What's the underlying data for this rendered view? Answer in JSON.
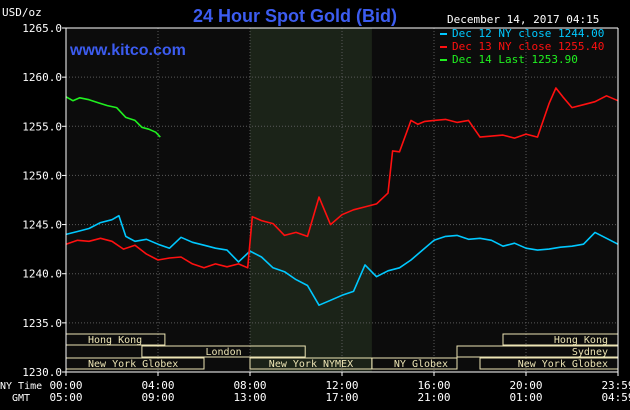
{
  "header": {
    "unit": "USD/oz",
    "title": "24 Hour Spot Gold (Bid)",
    "timestamp": "December 14, 2017 04:15",
    "website": "www.kitco.com"
  },
  "colors": {
    "background": "#000000",
    "plot_night": "#0c0c0c",
    "plot_nymex": "#1b2318",
    "grid": "#5a5a5a",
    "title": "#3c5cf0",
    "dec12": "#00c8ff",
    "dec13": "#ff1010",
    "dec14": "#20f020",
    "session_box": "#ece4b4",
    "text": "#ffffff"
  },
  "chart_data": {
    "type": "line",
    "title": "24 Hour Spot Gold (Bid)",
    "ylabel": "USD/oz",
    "ylim": [
      1230,
      1265
    ],
    "y_ticks": [
      1230,
      1235,
      1240,
      1245,
      1250,
      1255,
      1260,
      1265
    ],
    "y_tick_labels": [
      "1230.0",
      "1235.0",
      "1240.0",
      "1245.0",
      "1250.0",
      "1255.0",
      "1260.0",
      "1265.0"
    ],
    "xlim": [
      0,
      24
    ],
    "x_ticks": [
      0,
      4,
      8,
      12,
      16,
      20,
      24
    ],
    "x_tick_labels_ny": [
      "00:00",
      "04:00",
      "08:00",
      "12:00",
      "16:00",
      "20:00",
      "23:59"
    ],
    "x_tick_labels_gmt": [
      "05:00",
      "09:00",
      "13:00",
      "17:00",
      "21:00",
      "01:00",
      "04:59"
    ],
    "x_axis_label_ny": "NY Time",
    "x_axis_label_gmt": "GMT",
    "nymex_shade": [
      8,
      13.3
    ],
    "legend": [
      {
        "label": "Dec 12 NY close 1244.00",
        "color": "#00c8ff"
      },
      {
        "label": "Dec 13 NY close 1255.40",
        "color": "#ff1010"
      },
      {
        "label": "Dec 14 Last 1253.90",
        "color": "#20f020"
      }
    ],
    "series": [
      {
        "color": "#00c8ff",
        "x": [
          0,
          0.5,
          1,
          1.5,
          2,
          2.3,
          2.6,
          3,
          3.5,
          4,
          4.5,
          5,
          5.5,
          6,
          6.5,
          7,
          7.5,
          8,
          8.5,
          9,
          9.5,
          10,
          10.5,
          11,
          11.5,
          12,
          12.5,
          13,
          13.5,
          14,
          14.5,
          15,
          15.5,
          16,
          16.5,
          17,
          17.5,
          18,
          18.5,
          19,
          19.5,
          20,
          20.5,
          21,
          21.5,
          22,
          22.5,
          23,
          23.5,
          24
        ],
        "y": [
          1244.0,
          1244.3,
          1244.6,
          1245.2,
          1245.5,
          1245.9,
          1243.8,
          1243.3,
          1243.5,
          1243.0,
          1242.6,
          1243.7,
          1243.2,
          1242.9,
          1242.6,
          1242.4,
          1241.2,
          1242.3,
          1241.7,
          1240.6,
          1240.2,
          1239.4,
          1238.8,
          1236.8,
          1237.3,
          1237.8,
          1238.2,
          1240.9,
          1239.7,
          1240.3,
          1240.6,
          1241.4,
          1242.4,
          1243.4,
          1243.8,
          1243.9,
          1243.5,
          1243.6,
          1243.4,
          1242.8,
          1243.1,
          1242.6,
          1242.4,
          1242.5,
          1242.7,
          1242.8,
          1243.0,
          1244.2,
          1243.6,
          1243.0
        ]
      },
      {
        "color": "#ff1010",
        "x": [
          0,
          0.5,
          1,
          1.5,
          2,
          2.5,
          3,
          3.5,
          4,
          4.5,
          5,
          5.5,
          6,
          6.5,
          7,
          7.5,
          7.9,
          8.1,
          8.5,
          9,
          9.5,
          10,
          10.5,
          11,
          11.5,
          12,
          12.5,
          13,
          13.5,
          14,
          14.2,
          14.5,
          15,
          15.3,
          15.6,
          16,
          16.5,
          17,
          17.5,
          18,
          18.5,
          19,
          19.5,
          20,
          20.5,
          21,
          21.3,
          21.6,
          22,
          22.5,
          23,
          23.5,
          24
        ],
        "y": [
          1243.0,
          1243.4,
          1243.3,
          1243.6,
          1243.3,
          1242.5,
          1242.9,
          1242.0,
          1241.4,
          1241.6,
          1241.7,
          1241.0,
          1240.6,
          1241.0,
          1240.7,
          1241.0,
          1240.6,
          1245.8,
          1245.4,
          1245.1,
          1243.9,
          1244.2,
          1243.8,
          1247.8,
          1245.0,
          1246.0,
          1246.5,
          1246.8,
          1247.1,
          1248.2,
          1252.5,
          1252.4,
          1255.6,
          1255.2,
          1255.5,
          1255.6,
          1255.7,
          1255.4,
          1255.6,
          1253.9,
          1254.0,
          1254.1,
          1253.8,
          1254.2,
          1253.9,
          1257.3,
          1258.9,
          1258.0,
          1256.9,
          1257.2,
          1257.5,
          1258.1,
          1257.6
        ]
      },
      {
        "color": "#20f020",
        "x": [
          0,
          0.3,
          0.6,
          1,
          1.4,
          1.8,
          2.2,
          2.6,
          3,
          3.3,
          3.6,
          3.9,
          4.1
        ],
        "y": [
          1258.0,
          1257.6,
          1257.9,
          1257.7,
          1257.4,
          1257.1,
          1256.9,
          1255.9,
          1255.6,
          1254.9,
          1254.7,
          1254.4,
          1253.9
        ]
      }
    ]
  },
  "sessions": [
    {
      "label": "Hong Kong",
      "row": 0,
      "start": 0,
      "end": 4.3,
      "side": "left"
    },
    {
      "label": "London",
      "row": 1,
      "start": 3.3,
      "end": 10.4,
      "side": "center"
    },
    {
      "label": "New York Globex",
      "row": 2,
      "start": 0,
      "end": 6.0,
      "side": "left"
    },
    {
      "label": "New York NYMEX",
      "row": 2,
      "start": 8.0,
      "end": 13.3,
      "side": "center"
    },
    {
      "label": "NY Globex",
      "row": 2,
      "start": 13.3,
      "end": 17.0,
      "side": "left"
    },
    {
      "label": "Hong Kong",
      "row": 0,
      "start": 19.0,
      "end": 24.0,
      "side": "right"
    },
    {
      "label": "Sydney",
      "row": 1,
      "start": 17.0,
      "end": 24.0,
      "side": "right"
    },
    {
      "label": "New York Globex",
      "row": 2,
      "start": 18.0,
      "end": 24.0,
      "side": "right"
    }
  ]
}
